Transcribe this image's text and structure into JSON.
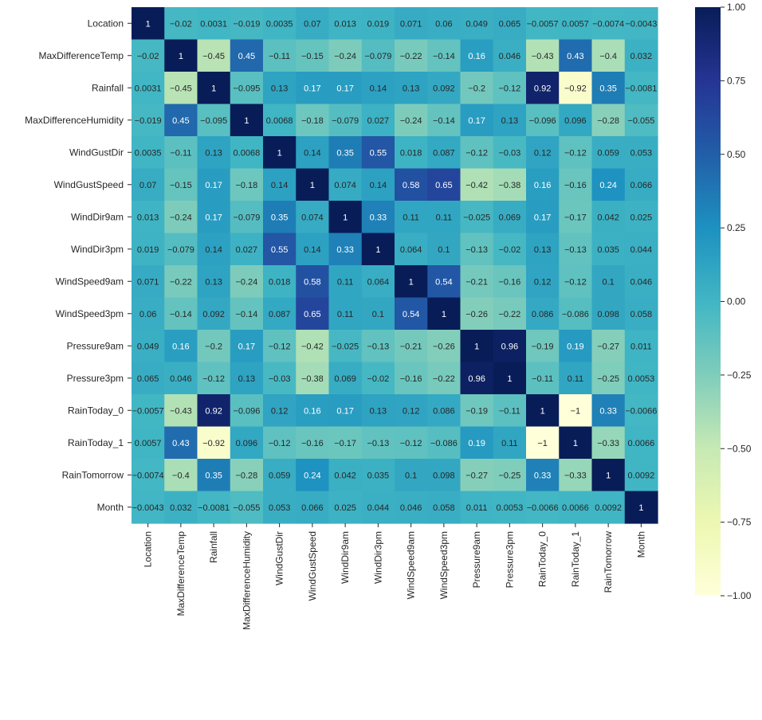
{
  "chart_data": {
    "type": "heatmap",
    "title": "",
    "xlabel": "",
    "ylabel": "",
    "colormap": "YlGnBu",
    "value_range": [
      -1,
      1
    ],
    "variables": [
      "Location",
      "MaxDifferenceTemp",
      "Rainfall",
      "MaxDifferenceHumidity",
      "WindGustDir",
      "WindGustSpeed",
      "WindDir9am",
      "WindDir3pm",
      "WindSpeed9am",
      "WindSpeed3pm",
      "Pressure9am",
      "Pressure3pm",
      "RainToday_0",
      "RainToday_1",
      "RainTomorrow",
      "Month"
    ],
    "values": [
      [
        1,
        -0.02,
        0.0031,
        -0.019,
        0.0035,
        0.07,
        0.013,
        0.019,
        0.071,
        0.06,
        0.049,
        0.065,
        -0.0057,
        0.0057,
        -0.0074,
        -0.0043
      ],
      [
        -0.02,
        1,
        -0.45,
        0.45,
        -0.11,
        -0.15,
        -0.24,
        -0.079,
        -0.22,
        -0.14,
        0.16,
        0.046,
        -0.43,
        0.43,
        -0.4,
        0.032
      ],
      [
        0.0031,
        -0.45,
        1,
        -0.095,
        0.13,
        0.17,
        0.17,
        0.14,
        0.13,
        0.092,
        -0.2,
        -0.12,
        0.92,
        -0.92,
        0.35,
        -0.0081
      ],
      [
        -0.019,
        0.45,
        -0.095,
        1,
        0.0068,
        -0.18,
        -0.079,
        0.027,
        -0.24,
        -0.14,
        0.17,
        0.13,
        -0.096,
        0.096,
        -0.28,
        -0.055
      ],
      [
        0.0035,
        -0.11,
        0.13,
        0.0068,
        1,
        0.14,
        0.35,
        0.55,
        0.018,
        0.087,
        -0.12,
        -0.03,
        0.12,
        -0.12,
        0.059,
        0.053
      ],
      [
        0.07,
        -0.15,
        0.17,
        -0.18,
        0.14,
        1,
        0.074,
        0.14,
        0.58,
        0.65,
        -0.42,
        -0.38,
        0.16,
        -0.16,
        0.24,
        0.066
      ],
      [
        0.013,
        -0.24,
        0.17,
        -0.079,
        0.35,
        0.074,
        1,
        0.33,
        0.11,
        0.11,
        -0.025,
        0.069,
        0.17,
        -0.17,
        0.042,
        0.025
      ],
      [
        0.019,
        -0.079,
        0.14,
        0.027,
        0.55,
        0.14,
        0.33,
        1,
        0.064,
        0.1,
        -0.13,
        -0.02,
        0.13,
        -0.13,
        0.035,
        0.044
      ],
      [
        0.071,
        -0.22,
        0.13,
        -0.24,
        0.018,
        0.58,
        0.11,
        0.064,
        1,
        0.54,
        -0.21,
        -0.16,
        0.12,
        -0.12,
        0.1,
        0.046
      ],
      [
        0.06,
        -0.14,
        0.092,
        -0.14,
        0.087,
        0.65,
        0.11,
        0.1,
        0.54,
        1,
        -0.26,
        -0.22,
        0.086,
        -0.086,
        0.098,
        0.058
      ],
      [
        0.049,
        0.16,
        -0.2,
        0.17,
        -0.12,
        -0.42,
        -0.025,
        -0.13,
        -0.21,
        -0.26,
        1,
        0.96,
        -0.19,
        0.19,
        -0.27,
        0.011
      ],
      [
        0.065,
        0.046,
        -0.12,
        0.13,
        -0.03,
        -0.38,
        0.069,
        -0.02,
        -0.16,
        -0.22,
        0.96,
        1,
        -0.11,
        0.11,
        -0.25,
        0.0053
      ],
      [
        -0.0057,
        -0.43,
        0.92,
        -0.096,
        0.12,
        0.16,
        0.17,
        0.13,
        0.12,
        0.086,
        -0.19,
        -0.11,
        1,
        -1,
        0.33,
        -0.0066
      ],
      [
        0.0057,
        0.43,
        -0.92,
        0.096,
        -0.12,
        -0.16,
        -0.17,
        -0.13,
        -0.12,
        -0.086,
        0.19,
        0.11,
        -1,
        1,
        -0.33,
        0.0066
      ],
      [
        -0.0074,
        -0.4,
        0.35,
        -0.28,
        0.059,
        0.24,
        0.042,
        0.035,
        0.1,
        0.098,
        -0.27,
        -0.25,
        0.33,
        -0.33,
        1,
        0.0092
      ],
      [
        -0.0043,
        0.032,
        -0.0081,
        -0.055,
        0.053,
        0.066,
        0.025,
        0.044,
        0.046,
        0.058,
        0.011,
        0.0053,
        -0.0066,
        0.0066,
        0.0092,
        1
      ]
    ],
    "colorbar": {
      "ticks": [
        1.0,
        0.75,
        0.5,
        0.25,
        0.0,
        -0.25,
        -0.5,
        -0.75,
        -1.0
      ],
      "tick_labels": [
        "1.00",
        "0.75",
        "0.50",
        "0.25",
        "0.00",
        "−0.25",
        "−0.50",
        "−0.75",
        "−1.00"
      ]
    },
    "grid": false,
    "legend": "colorbar-right"
  }
}
